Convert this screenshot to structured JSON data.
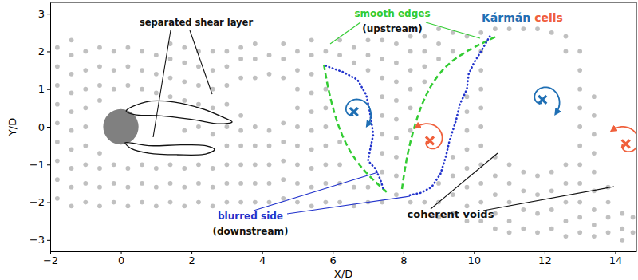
{
  "chart_data": {
    "type": "scatter",
    "xlabel": "X/D",
    "ylabel": "Y/D",
    "xlim": [
      -2,
      14.6
    ],
    "ylim": [
      -3.3,
      3.3
    ],
    "xticks": [
      {
        "value": -2,
        "label": "−2"
      },
      0,
      2,
      4,
      6,
      8,
      10,
      12,
      14
    ],
    "yticks": [
      {
        "value": -3,
        "label": "−3"
      },
      {
        "value": -2,
        "label": "−2"
      },
      {
        "value": -1,
        "label": "−1"
      },
      0,
      1,
      2,
      3
    ],
    "marker": "circle",
    "color": "#c0c0c0",
    "x": [
      -1.8,
      -1.8,
      -1.8,
      -1.8,
      -1.8,
      -1.8,
      -1.8,
      -1.8,
      -1.8,
      -1.4,
      -1.4,
      -1.4,
      -1.4,
      -1.4,
      -1.4,
      -1.4,
      -1.4,
      -1.4,
      -1.4,
      -1.0,
      -1.0,
      -1.0,
      -1.0,
      -1.0,
      -1.0,
      -1.0,
      -1.0,
      -1.0,
      -0.6,
      -0.6,
      -0.6,
      -0.6,
      -0.6,
      -0.6,
      -0.6,
      -0.6,
      -0.2,
      -0.2,
      -0.2,
      -0.2,
      -0.2,
      -0.2,
      0.2,
      0.2,
      0.2,
      0.2,
      0.2,
      0.2,
      0.6,
      0.6,
      0.6,
      0.6,
      0.6,
      0.6,
      1.0,
      1.0,
      1.0,
      1.0,
      1.0,
      1.0,
      1.4,
      1.4,
      1.4,
      1.4,
      1.4,
      1.4,
      1.4,
      1.8,
      1.8,
      1.8,
      1.8,
      1.8,
      1.8,
      1.8,
      1.8,
      2.2,
      2.2,
      2.2,
      2.2,
      2.2,
      2.2,
      2.2,
      2.2,
      2.6,
      2.6,
      2.6,
      2.6,
      2.6,
      2.6,
      2.6,
      2.6,
      3.0,
      3.0,
      3.0,
      3.0,
      3.0,
      3.0,
      3.0,
      3.0,
      3.0,
      3.4,
      3.4,
      3.4,
      3.4,
      3.4,
      3.4,
      3.4,
      3.4,
      3.4,
      3.8,
      3.8,
      3.8,
      3.8,
      3.8,
      3.8,
      3.8,
      3.8,
      4.2,
      4.2,
      4.2,
      4.2,
      4.2,
      4.2,
      4.2,
      4.6,
      4.6,
      4.6,
      4.6,
      4.6,
      4.6,
      4.6,
      4.6,
      5.0,
      5.0,
      5.0,
      5.0,
      5.0,
      5.0,
      5.0,
      5.0,
      5.0,
      5.4,
      5.4,
      5.4,
      5.4,
      5.4,
      5.4,
      5.4,
      5.4,
      5.4,
      5.4,
      5.8,
      5.8,
      5.8,
      5.8,
      5.8,
      5.8,
      5.8,
      5.8,
      6.2,
      6.2,
      6.2,
      6.2,
      6.2,
      6.2,
      6.6,
      6.6,
      6.6,
      6.6,
      7.0,
      7.0,
      7.0,
      7.0,
      7.0,
      7.4,
      7.4,
      7.4,
      7.4,
      7.4,
      7.4,
      7.4,
      7.4,
      7.4,
      7.8,
      7.8,
      7.8,
      7.8,
      7.8,
      7.8,
      7.8,
      7.8,
      7.8,
      8.2,
      8.2,
      8.2,
      8.2,
      8.2,
      8.2,
      8.2,
      8.6,
      8.6,
      8.6,
      8.6,
      8.6,
      9.0,
      9.0,
      9.0,
      9.0,
      9.0,
      9.0,
      9.4,
      9.4,
      9.4,
      9.4,
      9.4,
      9.4,
      9.8,
      9.8,
      9.8,
      9.8,
      9.8,
      9.8,
      9.8,
      9.8,
      9.8,
      10.2,
      10.2,
      10.2,
      10.2,
      10.2,
      10.2,
      10.2,
      10.2,
      10.2,
      10.2,
      10.2,
      10.6,
      10.6,
      10.6,
      10.6,
      10.6,
      10.6,
      11.0,
      11.0,
      11.0,
      11.0,
      11.0,
      11.0,
      11.4,
      11.4,
      11.4,
      11.4,
      11.4,
      11.8,
      11.8,
      11.8,
      11.8,
      11.8,
      12.2,
      12.2,
      12.2,
      12.2,
      12.2,
      12.6,
      12.6,
      12.6,
      12.6,
      12.6,
      12.6,
      12.6,
      13.0,
      13.0,
      13.0,
      13.0,
      13.0,
      13.0,
      13.0,
      13.0,
      13.0,
      13.0,
      13.0,
      13.4,
      13.4,
      13.4,
      13.4,
      13.4,
      13.4,
      13.4,
      13.4,
      13.4,
      13.8,
      13.8,
      13.8,
      13.8,
      14.2,
      14.2,
      14.2,
      14.5,
      14.5
    ],
    "values": [
      -1.9,
      -1.4,
      -0.9,
      -0.4,
      0.1,
      0.6,
      1.1,
      1.6,
      2.1,
      -2.1,
      -1.6,
      -1.1,
      -0.6,
      -0.1,
      0.4,
      0.9,
      1.4,
      1.9,
      2.3,
      -2.0,
      -1.5,
      -1.0,
      -0.5,
      0.0,
      0.5,
      1.0,
      1.5,
      2.0,
      -2.1,
      -1.6,
      -1.1,
      -0.7,
      0.7,
      1.1,
      1.6,
      2.1,
      -2.0,
      -1.5,
      -1.0,
      1.0,
      1.5,
      2.0,
      -2.1,
      -1.6,
      -1.1,
      1.1,
      1.6,
      2.1,
      -2.0,
      -1.5,
      -1.0,
      1.0,
      1.5,
      2.0,
      -2.1,
      -1.6,
      -1.1,
      0.9,
      1.4,
      1.9,
      -2.0,
      -1.5,
      -1.0,
      0.8,
      1.3,
      1.8,
      2.2,
      -2.1,
      -1.6,
      -1.1,
      -0.1,
      0.7,
      1.2,
      1.7,
      2.1,
      -2.0,
      -1.5,
      -1.0,
      0.0,
      0.6,
      1.1,
      1.6,
      2.0,
      -2.1,
      -1.6,
      -1.1,
      -0.2,
      0.5,
      1.0,
      1.5,
      2.0,
      -2.0,
      -1.5,
      -1.0,
      -0.5,
      0.0,
      0.6,
      1.1,
      1.6,
      2.0,
      -2.0,
      -1.5,
      -1.0,
      -0.5,
      -0.1,
      0.3,
      1.3,
      1.8,
      2.1,
      -2.0,
      -1.5,
      -1.0,
      -0.5,
      0.0,
      1.3,
      1.8,
      2.2,
      -2.0,
      -1.5,
      -1.0,
      -0.5,
      -0.1,
      1.4,
      1.9,
      -1.9,
      -1.4,
      -0.9,
      -0.4,
      0.1,
      1.3,
      1.8,
      2.2,
      -2.0,
      -1.5,
      -1.0,
      -0.5,
      0.0,
      0.5,
      1.0,
      1.5,
      2.0,
      -2.1,
      -1.6,
      -1.1,
      -0.6,
      -0.1,
      0.4,
      0.9,
      1.4,
      1.9,
      2.3,
      -2.0,
      -1.5,
      -1.0,
      -0.5,
      0.0,
      0.5,
      1.0,
      2.0,
      -2.0,
      -1.5,
      -1.0,
      -0.4,
      1.9,
      2.3,
      -2.1,
      -1.6,
      1.7,
      2.1,
      -2.0,
      -1.6,
      1.5,
      1.9,
      2.3,
      -2.0,
      -1.2,
      -0.7,
      -0.2,
      0.3,
      0.8,
      1.3,
      1.8,
      2.3,
      -1.8,
      -1.3,
      -0.8,
      -0.3,
      0.2,
      0.7,
      1.2,
      1.7,
      2.2,
      -2.0,
      -0.1,
      0.5,
      1.0,
      1.5,
      2.0,
      2.4,
      -2.0,
      1.2,
      1.6,
      2.0,
      2.4,
      -2.4,
      -2.0,
      -1.5,
      1.8,
      2.2,
      2.6,
      -2.3,
      -1.8,
      -1.3,
      -0.8,
      2.0,
      2.5,
      -2.5,
      -2.1,
      -1.6,
      -1.1,
      -0.6,
      -0.1,
      0.4,
      0.8,
      2.4,
      -2.5,
      -2.0,
      -1.5,
      -1.0,
      -0.5,
      0.0,
      0.5,
      1.0,
      1.5,
      2.0,
      2.5,
      -2.7,
      -2.3,
      -1.8,
      -1.3,
      -0.8,
      2.6,
      -2.8,
      -2.5,
      -2.0,
      -1.5,
      -1.0,
      2.6,
      -2.7,
      -2.2,
      -1.7,
      -1.2,
      2.6,
      -2.8,
      -2.3,
      -1.8,
      -1.3,
      2.6,
      -2.7,
      -2.2,
      -1.7,
      -1.2,
      2.5,
      -2.9,
      -2.5,
      -2.0,
      -1.5,
      -1.0,
      2.0,
      2.4,
      -2.8,
      -2.4,
      -2.0,
      -1.5,
      -1.0,
      -0.5,
      0.0,
      0.5,
      1.0,
      1.5,
      2.0,
      -2.9,
      -2.6,
      -2.2,
      -1.7,
      -1.2,
      -0.7,
      -0.2,
      0.3,
      0.8,
      -2.8,
      -2.4,
      -2.0,
      -1.6,
      -3.0,
      -2.7,
      -2.3,
      -2.8,
      -2.4
    ],
    "cylinder": {
      "x": 0,
      "y": 0,
      "diameter": 1,
      "color": "#808080"
    },
    "karman_cells": [
      {
        "x": 6.6,
        "y": 0.4,
        "color": "#1f6fb4"
      },
      {
        "x": 8.75,
        "y": -0.37,
        "color": "#f0603c"
      },
      {
        "x": 11.94,
        "y": 0.72,
        "color": "#1f6fb4"
      },
      {
        "x": 14.3,
        "y": -0.45,
        "color": "#f0603c"
      }
    ],
    "annotations": [
      {
        "text": "separated shear layer",
        "color": "#111111"
      },
      {
        "text": "smooth edges",
        "color": "#33cc33"
      },
      {
        "text": "(upstream)",
        "color": "#111111"
      },
      {
        "text": "Kármán",
        "color": "#1f6fb4"
      },
      {
        "text": "cells",
        "color": "#f0603c"
      },
      {
        "text": "blurred side",
        "color": "#2233cc"
      },
      {
        "text": "(downstream)",
        "color": "#111111"
      },
      {
        "text": "coherent voids",
        "color": "#111111"
      }
    ]
  }
}
